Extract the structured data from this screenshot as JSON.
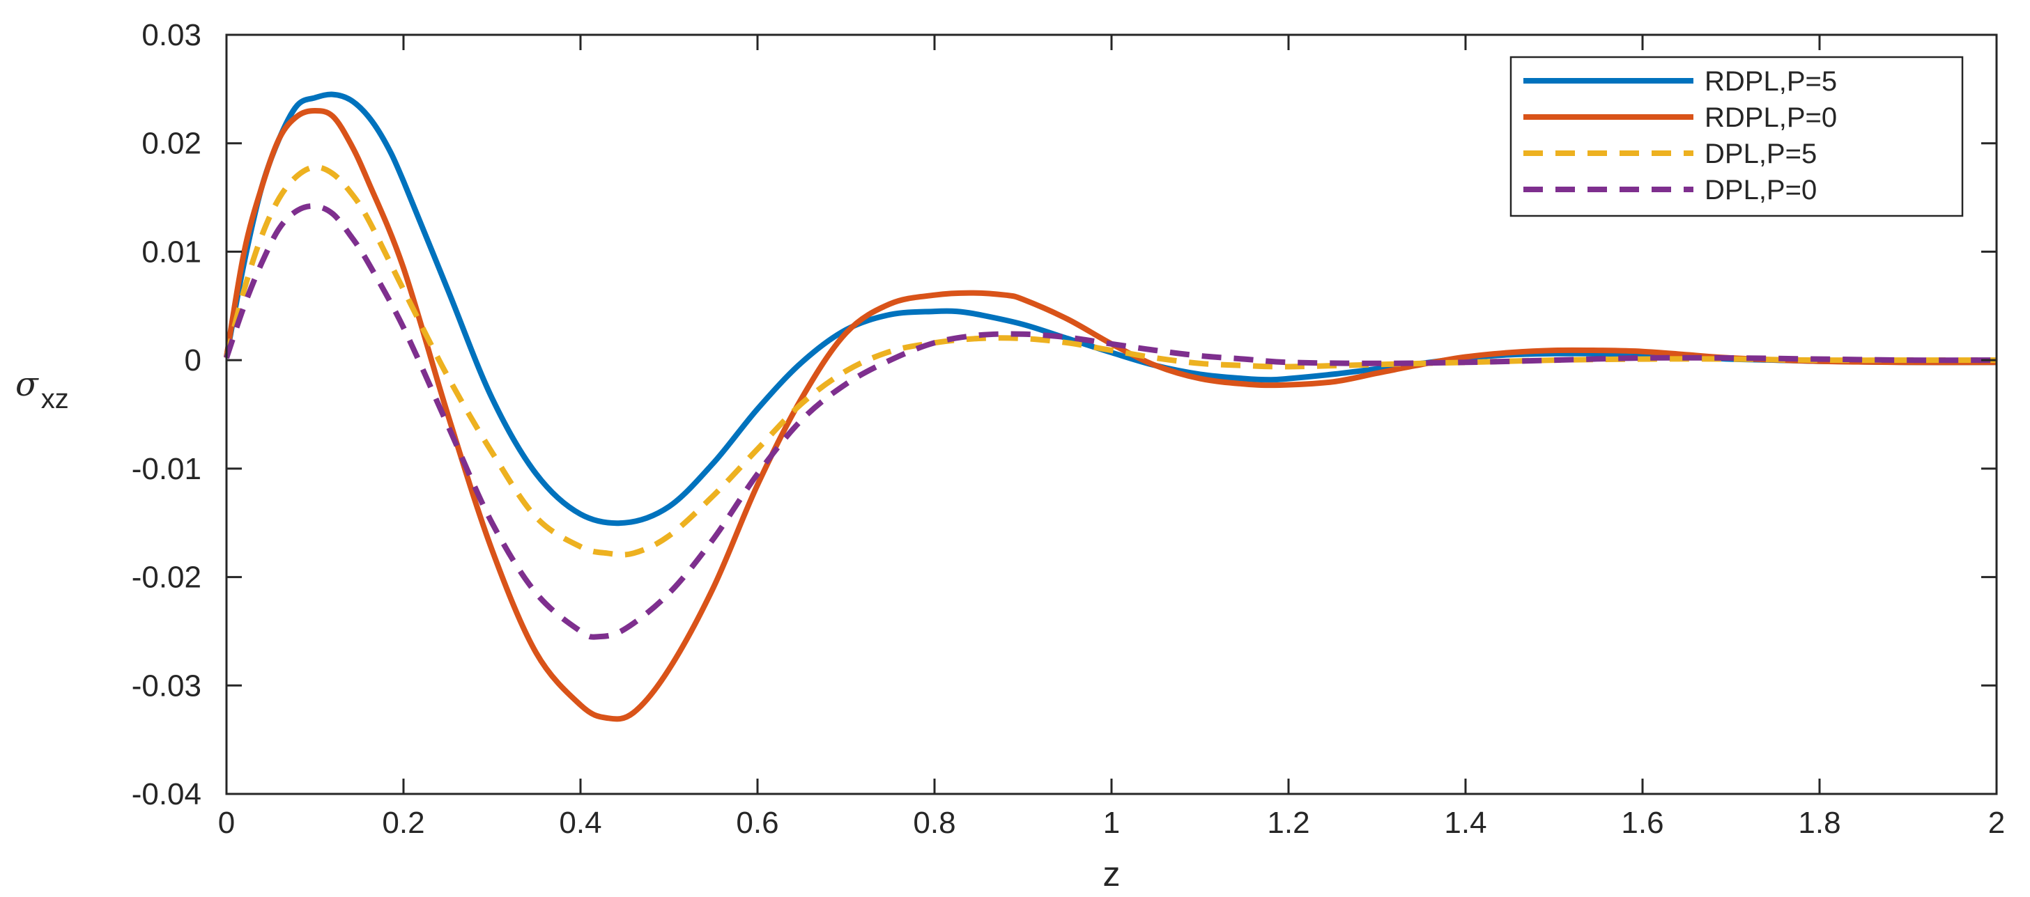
{
  "chart_data": {
    "type": "line",
    "xlabel": "z",
    "ylabel": {
      "symbol": "σ",
      "subscript": "xz"
    },
    "xlim": [
      0,
      2
    ],
    "ylim": [
      -0.04,
      0.03
    ],
    "x_ticks": [
      0,
      0.2,
      0.4,
      0.6,
      0.8,
      1,
      1.2,
      1.4,
      1.6,
      1.8,
      2
    ],
    "x_tick_labels": [
      "0",
      "0.2",
      "0.4",
      "0.6",
      "0.8",
      "1",
      "1.2",
      "1.4",
      "1.6",
      "1.8",
      "2"
    ],
    "y_ticks": [
      -0.04,
      -0.03,
      -0.02,
      -0.01,
      0,
      0.01,
      0.02,
      0.03
    ],
    "y_tick_labels": [
      "-0.04",
      "-0.03",
      "-0.02",
      "-0.01",
      "0",
      "0.01",
      "0.02",
      "0.03"
    ],
    "grid": false,
    "legend_position": "top-right",
    "series": [
      {
        "name": "RDPL,P=5",
        "color": "#0072BD",
        "style": "solid",
        "x": [
          0,
          0.02,
          0.04,
          0.06,
          0.08,
          0.1,
          0.12,
          0.14,
          0.16,
          0.18,
          0.2,
          0.25,
          0.3,
          0.35,
          0.4,
          0.45,
          0.5,
          0.55,
          0.6,
          0.65,
          0.7,
          0.75,
          0.8,
          0.825,
          0.85,
          0.9,
          0.95,
          1.0,
          1.05,
          1.1,
          1.15,
          1.18,
          1.2,
          1.25,
          1.3,
          1.35,
          1.4,
          1.45,
          1.5,
          1.55,
          1.6,
          1.65,
          1.7,
          1.75,
          1.8,
          1.9,
          2.0
        ],
        "y": [
          0.0003,
          0.009,
          0.016,
          0.0205,
          0.0235,
          0.0242,
          0.0245,
          0.024,
          0.0225,
          0.02,
          0.0165,
          0.0065,
          -0.0035,
          -0.0105,
          -0.0142,
          -0.015,
          -0.0135,
          -0.0095,
          -0.0045,
          -0.0002,
          0.0028,
          0.0042,
          0.0045,
          0.0045,
          0.0042,
          0.0033,
          0.002,
          0.0007,
          -0.0005,
          -0.0013,
          -0.0017,
          -0.0018,
          -0.0017,
          -0.0013,
          -0.0008,
          -0.0003,
          0.0002,
          0.0005,
          0.0006,
          0.0006,
          0.0005,
          0.0003,
          0.0001,
          0.0,
          -0.0001,
          -0.0002,
          -0.0002
        ]
      },
      {
        "name": "RDPL,P=0",
        "color": "#D95319",
        "style": "solid",
        "x": [
          0,
          0.02,
          0.04,
          0.06,
          0.08,
          0.1,
          0.12,
          0.14,
          0.16,
          0.2,
          0.25,
          0.3,
          0.35,
          0.4,
          0.43,
          0.46,
          0.5,
          0.55,
          0.6,
          0.65,
          0.7,
          0.75,
          0.8,
          0.84,
          0.88,
          0.9,
          0.95,
          1.0,
          1.05,
          1.1,
          1.15,
          1.19,
          1.25,
          1.3,
          1.35,
          1.4,
          1.45,
          1.5,
          1.55,
          1.6,
          1.65,
          1.7,
          1.8,
          1.9,
          2.0
        ],
        "y": [
          0.0003,
          0.01,
          0.016,
          0.0205,
          0.0225,
          0.023,
          0.0225,
          0.02,
          0.0165,
          0.0085,
          -0.005,
          -0.0175,
          -0.027,
          -0.0318,
          -0.033,
          -0.0325,
          -0.0285,
          -0.021,
          -0.0115,
          -0.0035,
          0.0025,
          0.0052,
          0.006,
          0.0062,
          0.006,
          0.0056,
          0.0038,
          0.0015,
          -0.0005,
          -0.0017,
          -0.0022,
          -0.0023,
          -0.002,
          -0.0012,
          -0.0004,
          0.0003,
          0.0007,
          0.0009,
          0.0009,
          0.0008,
          0.0005,
          0.0002,
          -0.0001,
          -0.0002,
          -0.0002
        ]
      },
      {
        "name": "DPL,P=5",
        "color": "#EDB120",
        "style": "dashed",
        "x": [
          0,
          0.02,
          0.04,
          0.06,
          0.08,
          0.1,
          0.12,
          0.14,
          0.16,
          0.2,
          0.25,
          0.3,
          0.35,
          0.4,
          0.43,
          0.46,
          0.5,
          0.55,
          0.6,
          0.65,
          0.7,
          0.75,
          0.8,
          0.85,
          0.9,
          0.95,
          1.0,
          1.05,
          1.1,
          1.15,
          1.2,
          1.3,
          1.4,
          1.5,
          1.6,
          1.7,
          1.8,
          1.9,
          2.0
        ],
        "y": [
          0.0002,
          0.0065,
          0.0115,
          0.015,
          0.017,
          0.0178,
          0.0172,
          0.0155,
          0.013,
          0.0065,
          -0.0015,
          -0.0085,
          -0.0145,
          -0.0172,
          -0.0178,
          -0.0178,
          -0.0162,
          -0.0125,
          -0.0082,
          -0.004,
          -0.001,
          0.0008,
          0.0016,
          0.002,
          0.002,
          0.0016,
          0.0009,
          0.0002,
          -0.0003,
          -0.0005,
          -0.0006,
          -0.0004,
          -0.0002,
          0.0,
          0.0001,
          0.0001,
          0.0,
          0.0,
          0.0
        ]
      },
      {
        "name": "DPL,P=0",
        "color": "#7E2F8E",
        "style": "dashed",
        "x": [
          0,
          0.02,
          0.04,
          0.06,
          0.08,
          0.1,
          0.12,
          0.14,
          0.16,
          0.2,
          0.25,
          0.3,
          0.35,
          0.4,
          0.42,
          0.45,
          0.5,
          0.55,
          0.6,
          0.65,
          0.7,
          0.75,
          0.8,
          0.85,
          0.9,
          0.95,
          1.0,
          1.05,
          1.1,
          1.15,
          1.2,
          1.3,
          1.4,
          1.5,
          1.6,
          1.7,
          1.8,
          1.9,
          2.0
        ],
        "y": [
          0.0002,
          0.005,
          0.009,
          0.0122,
          0.0138,
          0.0142,
          0.0135,
          0.0115,
          0.009,
          0.003,
          -0.006,
          -0.015,
          -0.0215,
          -0.025,
          -0.0255,
          -0.0248,
          -0.0215,
          -0.0165,
          -0.0105,
          -0.0055,
          -0.0022,
          0.0,
          0.0016,
          0.0023,
          0.0024,
          0.0021,
          0.0015,
          0.0009,
          0.0004,
          0.0001,
          -0.0002,
          -0.0003,
          -0.0002,
          0.0,
          0.0002,
          0.0002,
          0.0001,
          0.0,
          0.0
        ]
      }
    ]
  }
}
